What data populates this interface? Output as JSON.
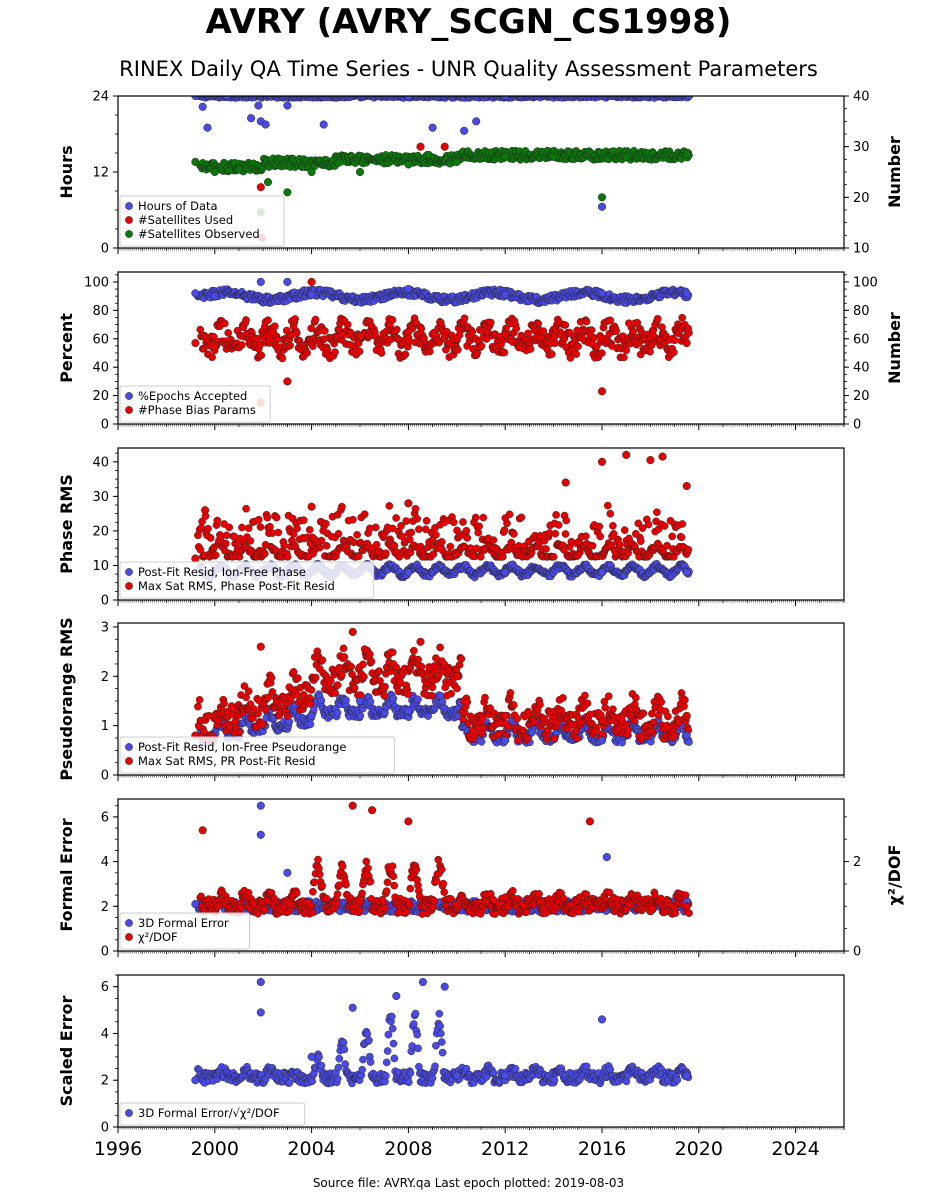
{
  "title": "AVRY (AVRY_SCGN_CS1998)",
  "subtitle": "RINEX Daily QA Time Series - UNR Quality Assessment Parameters",
  "source_note": "Source file: AVRY.qa Last epoch plotted: 2019-08-03",
  "colors": {
    "blue": "#4a4ae6",
    "red": "#e60000",
    "green": "#0a7a0a"
  },
  "chart_data": [
    {
      "type": "scatter",
      "ylabel": "Hours",
      "ylim": [
        0,
        24
      ],
      "yticks": [
        0,
        12,
        24
      ],
      "y2label": "Number",
      "y2lim": [
        10,
        40
      ],
      "y2ticks": [
        10,
        20,
        30,
        40
      ],
      "xlim": [
        1996,
        2026
      ],
      "xticks": [
        1996,
        2000,
        2004,
        2008,
        2012,
        2016,
        2020,
        2024
      ],
      "legend_position": "lower-left",
      "series": [
        {
          "name": "Hours of Data",
          "axis": "left",
          "color": "blue",
          "points": [
            [
              1999.2,
              24
            ],
            [
              1999.5,
              22.3
            ],
            [
              1999.7,
              19
            ],
            [
              2000.5,
              24
            ],
            [
              2001.5,
              20.5
            ],
            [
              2001.8,
              22.5
            ],
            [
              2001.9,
              20
            ],
            [
              2002.1,
              19.5
            ],
            [
              2003.0,
              22.5
            ],
            [
              2004.5,
              19.5
            ],
            [
              2008.0,
              24
            ],
            [
              2009.0,
              19
            ],
            [
              2010.3,
              18.5
            ],
            [
              2010.8,
              20
            ],
            [
              2012.0,
              24
            ],
            [
              2016.0,
              6.5
            ],
            [
              2019.6,
              24
            ]
          ]
        },
        {
          "name": "#Satellites Used",
          "axis": "right",
          "color": "red",
          "points": [
            [
              2001.9,
              22
            ],
            [
              2001.95,
              12
            ],
            [
              2008.5,
              30
            ],
            [
              2009.5,
              30
            ]
          ]
        },
        {
          "name": "#Satellites Observed",
          "axis": "right",
          "color": "green",
          "points": [
            [
              1999.2,
              27
            ],
            [
              2000.0,
              25
            ],
            [
              2001.0,
              25.5
            ],
            [
              2001.9,
              17
            ],
            [
              2002.2,
              23
            ],
            [
              2003.0,
              21
            ],
            [
              2004.0,
              25
            ],
            [
              2006.0,
              25
            ],
            [
              2008.0,
              26.5
            ],
            [
              2010.0,
              27
            ],
            [
              2012.0,
              28
            ],
            [
              2014.0,
              28
            ],
            [
              2016.0,
              20
            ],
            [
              2017.0,
              28
            ],
            [
              2019.5,
              28.5
            ]
          ]
        }
      ]
    },
    {
      "type": "scatter",
      "ylabel": "Percent",
      "ylim": [
        0,
        107
      ],
      "yticks": [
        0,
        20,
        40,
        60,
        80,
        100
      ],
      "y2label": "Number",
      "y2lim": [
        0,
        107
      ],
      "y2ticks": [
        0,
        20,
        40,
        60,
        80,
        100
      ],
      "xlim": [
        1996,
        2026
      ],
      "legend_position": "lower-left",
      "series": [
        {
          "name": "%Epochs Accepted",
          "axis": "left",
          "color": "blue",
          "points": [
            [
              1999.2,
              92
            ],
            [
              2000.0,
              90
            ],
            [
              2001.9,
              100
            ],
            [
              2003.0,
              100
            ],
            [
              2004.0,
              91
            ],
            [
              2008.0,
              95
            ],
            [
              2012.0,
              91
            ],
            [
              2016.0,
              92
            ],
            [
              2019.5,
              92
            ]
          ]
        },
        {
          "name": "#Phase Bias Params",
          "axis": "right",
          "color": "red",
          "points": [
            [
              1999.2,
              57
            ],
            [
              2000.0,
              55
            ],
            [
              2001.9,
              15
            ],
            [
              2003.0,
              30
            ],
            [
              2004.0,
              100
            ],
            [
              2006.0,
              62
            ],
            [
              2008.0,
              65
            ],
            [
              2010.0,
              60
            ],
            [
              2012.0,
              63
            ],
            [
              2016.0,
              23
            ],
            [
              2019.5,
              57
            ]
          ]
        }
      ]
    },
    {
      "type": "scatter",
      "ylabel": "Phase RMS",
      "ylim": [
        0,
        44
      ],
      "yticks": [
        0,
        10,
        20,
        30,
        40
      ],
      "xlim": [
        1996,
        2026
      ],
      "legend_position": "lower-left",
      "series": [
        {
          "name": "Post-Fit Resid, Ion-Free Phase",
          "axis": "left",
          "color": "blue",
          "points": [
            [
              1999.5,
              9
            ],
            [
              2003.0,
              9
            ],
            [
              2006.0,
              8
            ],
            [
              2008.0,
              8
            ],
            [
              2012.0,
              8
            ],
            [
              2016.0,
              8
            ],
            [
              2019.5,
              8
            ]
          ]
        },
        {
          "name": "Max Sat RMS, Phase Post-Fit Resid",
          "axis": "left",
          "color": "red",
          "points": [
            [
              1999.2,
              12
            ],
            [
              1999.6,
              26
            ],
            [
              2004.0,
              27
            ],
            [
              2008.0,
              28
            ],
            [
              2014.5,
              34
            ],
            [
              2016.0,
              40
            ],
            [
              2017.0,
              42
            ],
            [
              2018.0,
              40.5
            ],
            [
              2018.5,
              41.5
            ],
            [
              2019.5,
              33
            ]
          ]
        }
      ]
    },
    {
      "type": "scatter",
      "ylabel": "Pseudorange RMS",
      "ylim": [
        0,
        3.08
      ],
      "yticks": [
        0,
        1,
        2,
        3
      ],
      "xlim": [
        1996,
        2026
      ],
      "legend_position": "lower-left",
      "series": [
        {
          "name": "Post-Fit Resid, Ion-Free Pseudorange",
          "axis": "left",
          "color": "blue",
          "points": [
            [
              1999.5,
              0.6
            ],
            [
              2004.0,
              1.2
            ],
            [
              2006.0,
              1.5
            ],
            [
              2008.0,
              1.3
            ],
            [
              2012.0,
              0.7
            ],
            [
              2016.0,
              0.7
            ],
            [
              2019.5,
              0.8
            ]
          ]
        },
        {
          "name": "Max Sat RMS, PR Post-Fit Resid",
          "axis": "left",
          "color": "red",
          "points": [
            [
              1999.2,
              0.8
            ],
            [
              2001.9,
              2.6
            ],
            [
              2005.7,
              2.9
            ],
            [
              2008.5,
              2.7
            ],
            [
              2010.0,
              2.0
            ],
            [
              2012.0,
              1.2
            ],
            [
              2016.0,
              1.1
            ],
            [
              2019.5,
              1.2
            ]
          ]
        }
      ]
    },
    {
      "type": "scatter",
      "ylabel": "Formal Error",
      "ylim": [
        0,
        6.8
      ],
      "yticks": [
        0,
        2,
        4,
        6
      ],
      "y2label": "χ²/DOF",
      "y2lim": [
        0,
        3.4
      ],
      "y2ticks": [
        0,
        2
      ],
      "xlim": [
        1996,
        2026
      ],
      "legend_position": "lower-left",
      "series": [
        {
          "name": "3D Formal Error",
          "axis": "left",
          "color": "blue",
          "points": [
            [
              1999.2,
              2.1
            ],
            [
              2001.9,
              6.5
            ],
            [
              2001.9,
              5.2
            ],
            [
              2003.0,
              3.5
            ],
            [
              2016.2,
              4.2
            ],
            [
              2019.5,
              2.2
            ]
          ]
        },
        {
          "name": "χ²/DOF",
          "axis": "right",
          "color": "red",
          "points": [
            [
              1999.5,
              2.7
            ],
            [
              2005.7,
              3.25
            ],
            [
              2006.5,
              3.15
            ],
            [
              2008.0,
              2.9
            ],
            [
              2012.0,
              1.2
            ],
            [
              2015.5,
              2.9
            ],
            [
              2019.5,
              1.0
            ]
          ]
        }
      ]
    },
    {
      "type": "scatter",
      "ylabel": "Scaled Error",
      "ylim": [
        0,
        6.5
      ],
      "yticks": [
        0,
        2,
        4,
        6
      ],
      "xlim": [
        1996,
        2026
      ],
      "xticks": [
        1996,
        2000,
        2004,
        2008,
        2012,
        2016,
        2020,
        2024
      ],
      "legend_position": "lower-left",
      "series": [
        {
          "name": "3D Formal Error/√χ²/DOF",
          "axis": "left",
          "color": "blue",
          "points": [
            [
              1999.2,
              2.0
            ],
            [
              2001.9,
              6.2
            ],
            [
              2001.9,
              4.9
            ],
            [
              2004.0,
              3.0
            ],
            [
              2005.7,
              5.1
            ],
            [
              2007.5,
              5.6
            ],
            [
              2008.6,
              6.2
            ],
            [
              2009.5,
              6.0
            ],
            [
              2010.0,
              2.2
            ],
            [
              2012.0,
              2.2
            ],
            [
              2016.0,
              4.6
            ],
            [
              2019.5,
              2.2
            ]
          ]
        }
      ]
    }
  ]
}
